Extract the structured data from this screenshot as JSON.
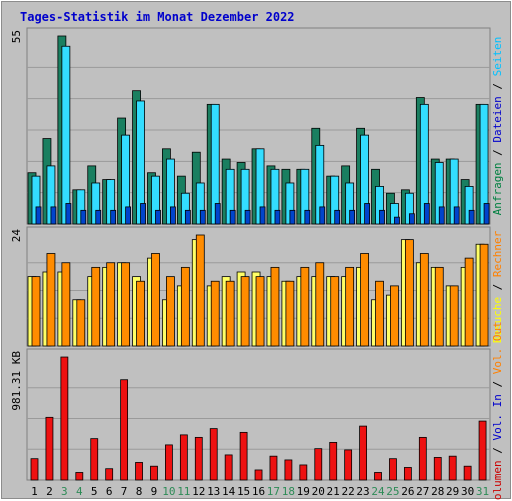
{
  "title": "Tages-Statistik im Monat Dezember 2022",
  "chart_data": {
    "type": "bar",
    "days": [
      "1",
      "2",
      "3",
      "4",
      "5",
      "6",
      "7",
      "8",
      "9",
      "10",
      "11",
      "12",
      "13",
      "14",
      "15",
      "16",
      "17",
      "18",
      "19",
      "20",
      "21",
      "22",
      "23",
      "24",
      "25",
      "26",
      "27",
      "28",
      "29",
      "30",
      "31"
    ],
    "weekend_days": [
      "3",
      "4",
      "10",
      "11",
      "17",
      "18",
      "24",
      "25",
      "31"
    ],
    "panels": [
      {
        "name": "requests",
        "max_label": "55",
        "ylim": [
          0,
          55
        ],
        "legend": [
          {
            "text": "Anfragen",
            "color": "#008040"
          },
          {
            "text": "Dateien",
            "color": "#0000cc"
          },
          {
            "text": "Seiten",
            "color": "#00c0ff"
          }
        ],
        "series": [
          {
            "name": "Anfragen",
            "color": "#1a7f60",
            "values": [
              15,
              25,
              55,
              10,
              17,
              13,
              31,
              39,
              15,
              22,
              14,
              21,
              35,
              19,
              18,
              22,
              17,
              16,
              16,
              28,
              14,
              17,
              28,
              16,
              9,
              10,
              37,
              19,
              19,
              13,
              35
            ]
          },
          {
            "name": "Dateien",
            "color": "#33ddff",
            "values": [
              14,
              17,
              52,
              10,
              12,
              13,
              26,
              36,
              14,
              19,
              9,
              12,
              35,
              16,
              16,
              22,
              16,
              12,
              16,
              23,
              14,
              12,
              26,
              11,
              6,
              9,
              35,
              18,
              19,
              11,
              35
            ]
          },
          {
            "name": "Seiten",
            "color": "#0044cc",
            "values": [
              5,
              5,
              6,
              4,
              4,
              4,
              5,
              6,
              4,
              5,
              4,
              4,
              6,
              4,
              4,
              5,
              4,
              4,
              4,
              5,
              4,
              4,
              6,
              4,
              2,
              3,
              6,
              5,
              5,
              4,
              6
            ]
          }
        ]
      },
      {
        "name": "visits",
        "max_label": "24",
        "ylim": [
          0,
          24
        ],
        "legend": [
          {
            "text": "Besuche",
            "color": "#ffff00"
          },
          {
            "text": "Rechner",
            "color": "#ff8000"
          }
        ],
        "series": [
          {
            "name": "Besuche",
            "color": "#ffff66",
            "values": [
              15,
              16,
              16,
              10,
              15,
              17,
              18,
              15,
              19,
              10,
              13,
              23,
              13,
              15,
              16,
              16,
              15,
              14,
              15,
              15,
              15,
              15,
              17,
              10,
              11,
              23,
              18,
              17,
              13,
              17,
              22
            ]
          },
          {
            "name": "Rechner",
            "color": "#ff8c00",
            "values": [
              15,
              20,
              18,
              10,
              17,
              18,
              18,
              14,
              20,
              15,
              17,
              24,
              14,
              14,
              15,
              15,
              17,
              14,
              17,
              18,
              15,
              17,
              20,
              14,
              13,
              23,
              20,
              17,
              13,
              19,
              22
            ]
          }
        ]
      },
      {
        "name": "volume",
        "max_label": "981.31 KB",
        "ylim": [
          0,
          981.31
        ],
        "legend": [
          {
            "text": "Volumen",
            "color": "#cc0000"
          },
          {
            "text": "Vol. In",
            "color": "#0000cc"
          },
          {
            "text": "Vol. Out",
            "color": "#ff8000"
          }
        ],
        "series": [
          {
            "name": "Volumen",
            "color": "#ee1111",
            "values": [
              170,
              500,
              981,
              60,
              330,
              90,
              800,
              140,
              110,
              280,
              360,
              340,
              410,
              200,
              380,
              80,
              190,
              160,
              120,
              250,
              300,
              240,
              430,
              60,
              170,
              100,
              340,
              180,
              190,
              110,
              470
            ]
          }
        ]
      }
    ]
  }
}
